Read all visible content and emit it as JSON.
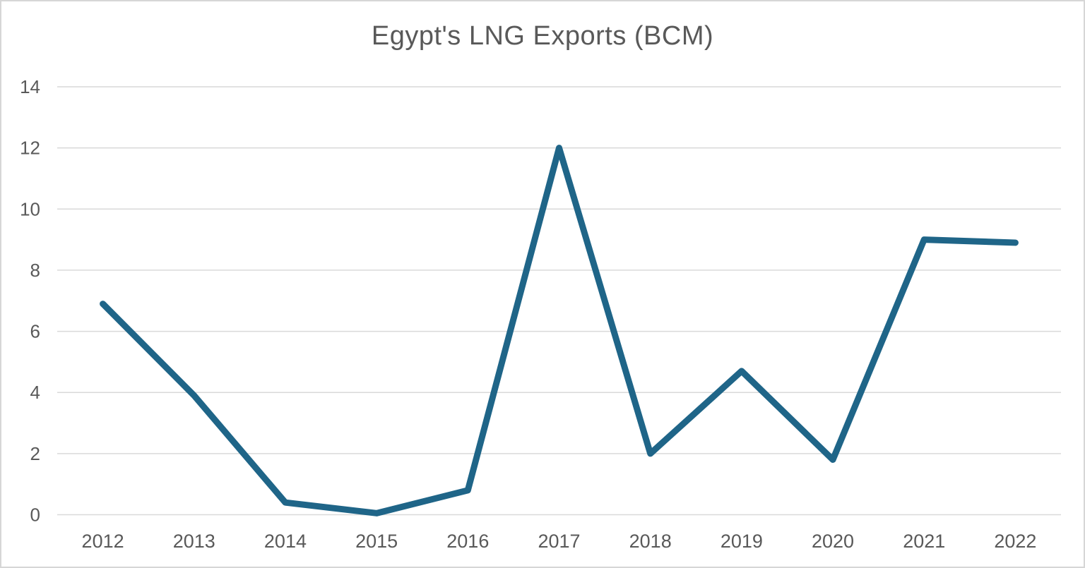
{
  "chart_data": {
    "type": "line",
    "title": "Egypt's LNG Exports (BCM)",
    "categories": [
      "2012",
      "2013",
      "2014",
      "2015",
      "2016",
      "2017",
      "2018",
      "2019",
      "2020",
      "2021",
      "2022"
    ],
    "values": [
      6.9,
      3.9,
      0.4,
      0.05,
      0.8,
      12,
      2,
      4.7,
      1.8,
      9,
      8.9
    ],
    "series_name": "Egypt's LNG Exports (BCM)",
    "xlabel": "",
    "ylabel": "",
    "ylim": [
      0,
      14
    ],
    "y_ticks": [
      0,
      2,
      4,
      6,
      8,
      10,
      12,
      14
    ],
    "grid": "horizontal",
    "legend_position": "none",
    "line_color": "#1f6588",
    "line_width": 9,
    "text_color": "#595959",
    "gridline_color": "#d9d9d9",
    "background_color": "#ffffff",
    "border_color": "#d6d6d6"
  }
}
